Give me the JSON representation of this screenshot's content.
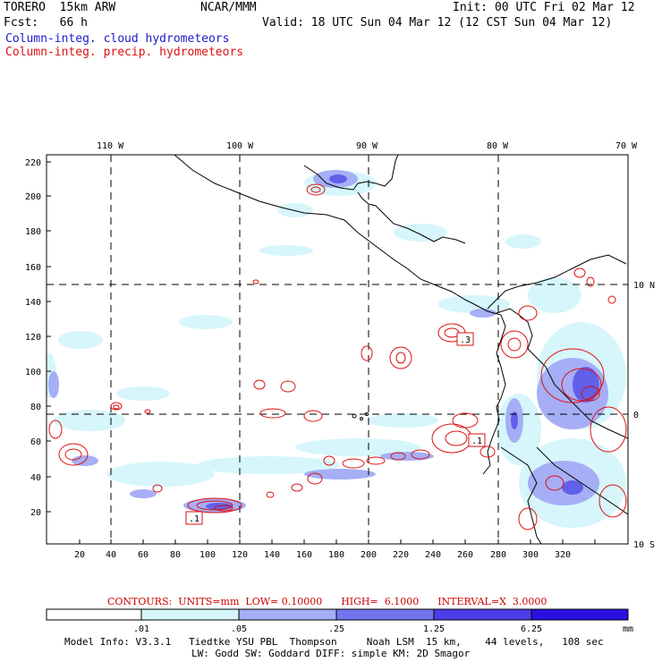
{
  "header": {
    "model": "TORERO  15km ARW",
    "org": "NCAR/MMM",
    "init": "Init: 00 UTC Fri 02 Mar 12",
    "fcst": "Fcst:   66 h",
    "valid": "Valid: 18 UTC Sun 04 Mar 12 (12 CST Sun 04 Mar 12)",
    "field1": "Column-integ. cloud hydrometeors",
    "field2": "Column-integ. precip. hydrometeors"
  },
  "map": {
    "top_lon_labels": [
      "110 W",
      "100 W",
      "90 W",
      "80 W",
      "70 W"
    ],
    "right_lat_labels": [
      "10 N",
      "0",
      "10 S"
    ],
    "y_ticks": [
      "220",
      "200",
      "180",
      "160",
      "140",
      "120",
      "100",
      "80",
      "60",
      "40",
      "20"
    ],
    "x_ticks": [
      "20",
      "40",
      "60",
      "80",
      "100",
      "120",
      "140",
      "160",
      "180",
      "200",
      "220",
      "240",
      "260",
      "280",
      "300",
      "320"
    ],
    "contour_labels": [
      ".3",
      ".1",
      ".1"
    ]
  },
  "contours_info": {
    "label": "CONTOURS:  UNITS=mm  LOW= 0.10000      HIGH=  6.1000      INTERVAL=X  3.0000"
  },
  "colorbar": {
    "colors": [
      "#ffffff",
      "#d6f6fb",
      "#a6aef6",
      "#7373ee",
      "#4a3fe6",
      "#2a10e0"
    ],
    "labels": [
      ".01",
      ".05",
      ".25",
      "1.25",
      "6.25"
    ],
    "unit": "mm"
  },
  "footer": {
    "line1": "Model Info: V3.3.1   Tiedtke YSU PBL  Thompson     Noah LSM  15 km,    44 levels,   108 sec",
    "line2": "LW: Godd SW: Goddard DIFF: simple KM: 2D Smagor"
  }
}
